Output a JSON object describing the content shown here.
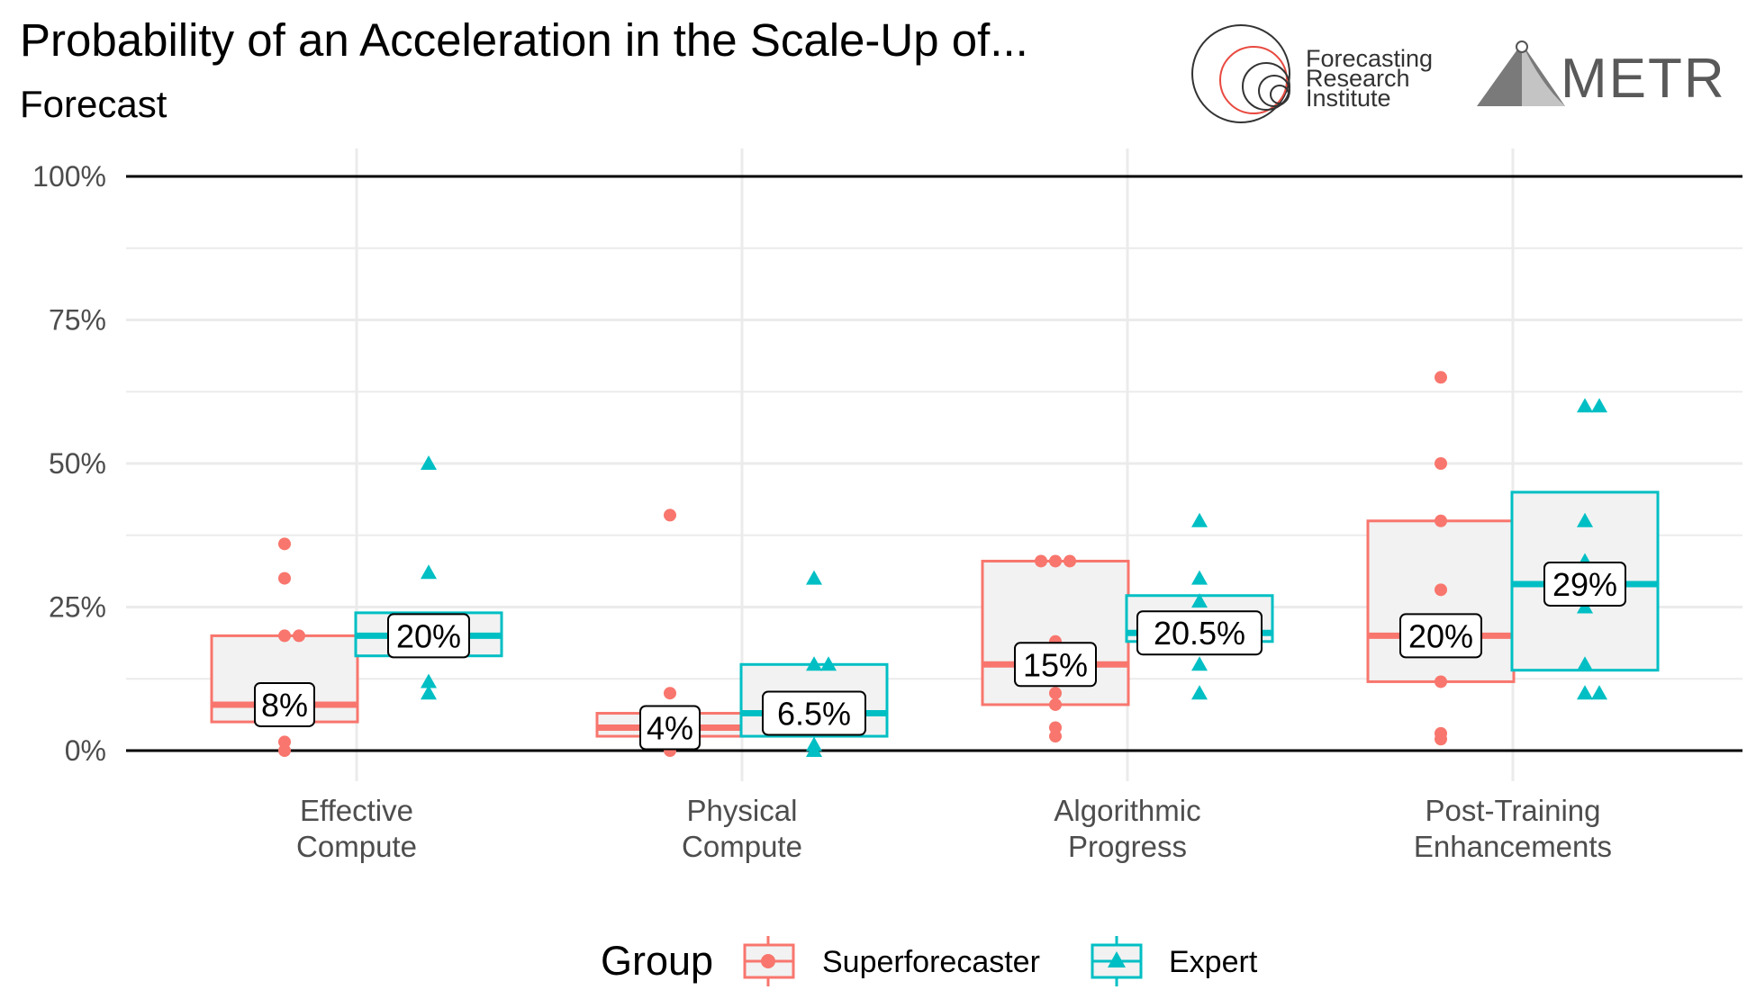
{
  "chart_data": {
    "type": "box",
    "title": "Probability of an Acceleration in the Scale-Up of...",
    "subtitle": "Forecast",
    "ylim": [
      0,
      100
    ],
    "yticks": [
      0,
      25,
      50,
      75,
      100
    ],
    "ytick_labels": [
      "0%",
      "25%",
      "50%",
      "75%",
      "100%"
    ],
    "categories": [
      [
        "Effective",
        "Compute"
      ],
      [
        "Physical",
        "Compute"
      ],
      [
        "Algorithmic",
        "Progress"
      ],
      [
        "Post-Training",
        "Enhancements"
      ]
    ],
    "legend": {
      "title": "Group",
      "position": "bottom"
    },
    "series": [
      {
        "name": "Superforecaster",
        "color": "#F8766D",
        "marker": "circle",
        "boxes": [
          {
            "q1": 5,
            "median": 8,
            "q3": 20,
            "label": "8%",
            "points": [
              36,
              30,
              20,
              20,
              1.5,
              0
            ]
          },
          {
            "q1": 2.5,
            "median": 4,
            "q3": 6.5,
            "label": "4%",
            "points": [
              41,
              10,
              0
            ]
          },
          {
            "q1": 8,
            "median": 15,
            "q3": 33,
            "label": "15%",
            "points": [
              33,
              33,
              33,
              19,
              10,
              8,
              4,
              2.5
            ]
          },
          {
            "q1": 12,
            "median": 20,
            "q3": 40,
            "label": "20%",
            "points": [
              65,
              50,
              40,
              28,
              12,
              3,
              2
            ]
          }
        ]
      },
      {
        "name": "Expert",
        "color": "#00BFC4",
        "marker": "triangle",
        "boxes": [
          {
            "q1": 16.5,
            "median": 20,
            "q3": 24,
            "label": "20%",
            "points": [
              50,
              31,
              12,
              10
            ]
          },
          {
            "q1": 2.5,
            "median": 6.5,
            "q3": 15,
            "label": "6.5%",
            "points": [
              30,
              15,
              15,
              1,
              0
            ]
          },
          {
            "q1": 19,
            "median": 20.5,
            "q3": 27,
            "label": "20.5%",
            "points": [
              40,
              30,
              26,
              15,
              10
            ]
          },
          {
            "q1": 14,
            "median": 29,
            "q3": 45,
            "label": "29%",
            "points": [
              60,
              60,
              40,
              33,
              25,
              15,
              10,
              10
            ]
          }
        ]
      }
    ]
  },
  "logos": {
    "fri": [
      "Forecasting",
      "Research",
      "Institute"
    ],
    "metr": "METR"
  }
}
